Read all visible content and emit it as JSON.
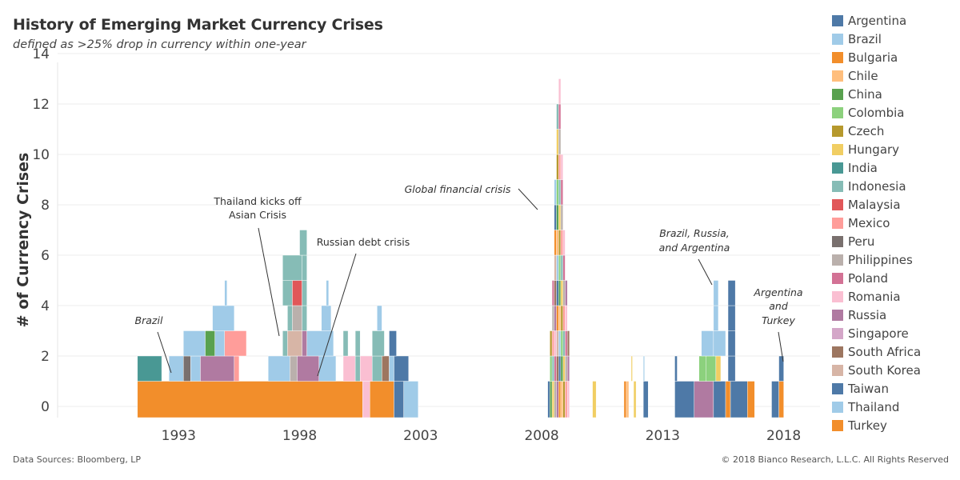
{
  "chart_data": {
    "type": "bar",
    "title": "History of Emerging Market Currency Crises",
    "subtitle": "defined as >25% drop in currency within one-year",
    "ylabel": "# of Currency Crises",
    "xlabel": "",
    "ylim": [
      0,
      14
    ],
    "yticks": [
      "0",
      "2",
      "4",
      "6",
      "8",
      "10",
      "12",
      "14"
    ],
    "xticks": [
      "1993",
      "1998",
      "2003",
      "2008",
      "2013",
      "2018"
    ],
    "grid": true,
    "legend_position": "right",
    "series": [
      {
        "name": "Argentina",
        "color": "#4e79a7"
      },
      {
        "name": "Brazil",
        "color": "#a0cbe8"
      },
      {
        "name": "Bulgaria",
        "color": "#f28e2b"
      },
      {
        "name": "Chile",
        "color": "#ffbe7d"
      },
      {
        "name": "China",
        "color": "#59a14f"
      },
      {
        "name": "Colombia",
        "color": "#8cd17d"
      },
      {
        "name": "Czech",
        "color": "#b6992d"
      },
      {
        "name": "Hungary",
        "color": "#f1ce63"
      },
      {
        "name": "India",
        "color": "#499894"
      },
      {
        "name": "Indonesia",
        "color": "#86bcb6"
      },
      {
        "name": "Malaysia",
        "color": "#e15759"
      },
      {
        "name": "Mexico",
        "color": "#ff9d9a"
      },
      {
        "name": "Peru",
        "color": "#79706e"
      },
      {
        "name": "Philippines",
        "color": "#bab0ac"
      },
      {
        "name": "Poland",
        "color": "#d37295"
      },
      {
        "name": "Romania",
        "color": "#fabfd2"
      },
      {
        "name": "Russia",
        "color": "#b07aa1"
      },
      {
        "name": "Singapore",
        "color": "#d4a6c8"
      },
      {
        "name": "South Africa",
        "color": "#9d7660"
      },
      {
        "name": "South Korea",
        "color": "#d7b5a6"
      },
      {
        "name": "Taiwan",
        "color": "#4e79a7"
      },
      {
        "name": "Thailand",
        "color": "#a0cbe8"
      },
      {
        "name": "Turkey",
        "color": "#f28e2b"
      }
    ],
    "segments": [
      {
        "country": "Bulgaria",
        "start": 1991.8,
        "end": 2001.1,
        "level": 0
      },
      {
        "country": "Bulgaria",
        "start": 2001.4,
        "end": 2002.4,
        "level": 0
      },
      {
        "country": "Romania",
        "start": 2001.1,
        "end": 2001.4,
        "level": 0
      },
      {
        "country": "Argentina",
        "start": 2002.4,
        "end": 2002.8,
        "level": 0
      },
      {
        "country": "Brazil",
        "start": 2002.8,
        "end": 2003.4,
        "level": 0
      },
      {
        "country": "India",
        "start": 1991.8,
        "end": 1992.8,
        "level": 1
      },
      {
        "country": "Thailand",
        "start": 1993.1,
        "end": 1993.7,
        "level": 1
      },
      {
        "country": "Peru",
        "start": 1993.7,
        "end": 1994.0,
        "level": 1
      },
      {
        "country": "Brazil",
        "start": 1994.0,
        "end": 1994.4,
        "level": 1
      },
      {
        "country": "Russia",
        "start": 1994.4,
        "end": 1995.8,
        "level": 1
      },
      {
        "country": "Mexico",
        "start": 1995.8,
        "end": 1996.0,
        "level": 1
      },
      {
        "country": "Thailand",
        "start": 1997.2,
        "end": 1998.1,
        "level": 1
      },
      {
        "country": "Philippines",
        "start": 1998.1,
        "end": 1998.4,
        "level": 1
      },
      {
        "country": "Russia",
        "start": 1998.4,
        "end": 1999.3,
        "level": 1
      },
      {
        "country": "Brazil",
        "start": 1999.3,
        "end": 2000.0,
        "level": 1
      },
      {
        "country": "Romania",
        "start": 2000.3,
        "end": 2000.8,
        "level": 1
      },
      {
        "country": "Indonesia",
        "start": 2000.8,
        "end": 2001.0,
        "level": 1
      },
      {
        "country": "Romania",
        "start": 2001.0,
        "end": 2001.5,
        "level": 1
      },
      {
        "country": "Indonesia",
        "start": 2001.5,
        "end": 2001.9,
        "level": 1
      },
      {
        "country": "South Africa",
        "start": 2001.9,
        "end": 2002.2,
        "level": 1
      },
      {
        "country": "Brazil",
        "start": 2002.2,
        "end": 2002.4,
        "level": 1
      },
      {
        "country": "Argentina",
        "start": 2002.4,
        "end": 2003.0,
        "level": 1
      },
      {
        "country": "Brazil",
        "start": 1993.7,
        "end": 1994.6,
        "level": 2
      },
      {
        "country": "China",
        "start": 1994.6,
        "end": 1995.0,
        "level": 2
      },
      {
        "country": "Brazil",
        "start": 1995.0,
        "end": 1995.4,
        "level": 2
      },
      {
        "country": "Mexico",
        "start": 1995.4,
        "end": 1996.3,
        "level": 2
      },
      {
        "country": "Indonesia",
        "start": 1997.8,
        "end": 1998.0,
        "level": 2
      },
      {
        "country": "South Korea",
        "start": 1998.0,
        "end": 1998.6,
        "level": 2
      },
      {
        "country": "Russia",
        "start": 1998.6,
        "end": 1998.8,
        "level": 2
      },
      {
        "country": "Brazil",
        "start": 1998.8,
        "end": 1999.9,
        "level": 2
      },
      {
        "country": "Indonesia",
        "start": 2000.3,
        "end": 2000.5,
        "level": 2
      },
      {
        "country": "Indonesia",
        "start": 2000.8,
        "end": 2001.0,
        "level": 2
      },
      {
        "country": "Indonesia",
        "start": 2001.5,
        "end": 2002.0,
        "level": 2
      },
      {
        "country": "Argentina",
        "start": 2002.2,
        "end": 2002.5,
        "level": 2
      },
      {
        "country": "Brazil",
        "start": 1994.9,
        "end": 1995.8,
        "level": 3
      },
      {
        "country": "Indonesia",
        "start": 1998.0,
        "end": 1998.2,
        "level": 3
      },
      {
        "country": "Philippines",
        "start": 1998.2,
        "end": 1998.6,
        "level": 3
      },
      {
        "country": "Indonesia",
        "start": 1998.6,
        "end": 1998.8,
        "level": 3
      },
      {
        "country": "Brazil",
        "start": 1999.4,
        "end": 1999.8,
        "level": 3
      },
      {
        "country": "Brazil",
        "start": 2001.7,
        "end": 2001.9,
        "level": 3
      },
      {
        "country": "Brazil",
        "start": 1995.4,
        "end": 1995.5,
        "level": 4
      },
      {
        "country": "Indonesia",
        "start": 1997.8,
        "end": 1998.2,
        "level": 4
      },
      {
        "country": "Malaysia",
        "start": 1998.2,
        "end": 1998.6,
        "level": 4
      },
      {
        "country": "Indonesia",
        "start": 1998.6,
        "end": 1998.8,
        "level": 4
      },
      {
        "country": "Brazil",
        "start": 1999.6,
        "end": 1999.7,
        "level": 4
      },
      {
        "country": "Indonesia",
        "start": 1997.8,
        "end": 1998.6,
        "level": 5
      },
      {
        "country": "Indonesia",
        "start": 1998.6,
        "end": 1998.8,
        "level": 5
      },
      {
        "country": "Indonesia",
        "start": 1998.5,
        "end": 1998.8,
        "level": 6
      }
    ],
    "gfc": {
      "start": 2008.75,
      "end": 2009.65,
      "heights": [
        1,
        3,
        5,
        9,
        12,
        13,
        10,
        7,
        5,
        3
      ]
    },
    "segments_2008_colors": [
      "Argentina",
      "Brazil",
      "Chile",
      "China",
      "Colombia",
      "Czech",
      "Hungary",
      "Indonesia",
      "Mexico",
      "Philippines",
      "Poland",
      "Romania",
      "Russia",
      "South Africa",
      "South Korea",
      "Turkey"
    ],
    "segments_later": [
      {
        "country": "Hungary",
        "start": 2010.6,
        "end": 2010.75,
        "level": 0
      },
      {
        "country": "Turkey",
        "start": 2011.9,
        "end": 2012.0,
        "level": 0
      },
      {
        "country": "Chile",
        "start": 2012.0,
        "end": 2012.1,
        "level": 0
      },
      {
        "country": "Hungary",
        "start": 2012.3,
        "end": 2012.4,
        "level": 0
      },
      {
        "country": "Argentina",
        "start": 2012.7,
        "end": 2012.9,
        "level": 0
      },
      {
        "country": "Hungary",
        "start": 2012.2,
        "end": 2012.25,
        "level": 1
      },
      {
        "country": "Brazil",
        "start": 2012.7,
        "end": 2012.75,
        "level": 1
      },
      {
        "country": "Argentina",
        "start": 2014.0,
        "end": 2014.8,
        "level": 0
      },
      {
        "country": "Russia",
        "start": 2014.8,
        "end": 2015.6,
        "level": 0
      },
      {
        "country": "Argentina",
        "start": 2015.6,
        "end": 2016.1,
        "level": 0
      },
      {
        "country": "Turkey",
        "start": 2016.1,
        "end": 2016.3,
        "level": 0
      },
      {
        "country": "Argentina",
        "start": 2016.3,
        "end": 2017.0,
        "level": 0
      },
      {
        "country": "Turkey",
        "start": 2017.0,
        "end": 2017.3,
        "level": 0
      },
      {
        "country": "Argentina",
        "start": 2018.0,
        "end": 2018.3,
        "level": 0
      },
      {
        "country": "Turkey",
        "start": 2018.3,
        "end": 2018.5,
        "level": 0
      },
      {
        "country": "Argentina",
        "start": 2014.0,
        "end": 2014.1,
        "level": 1
      },
      {
        "country": "Colombia",
        "start": 2015.0,
        "end": 2015.3,
        "level": 1
      },
      {
        "country": "Colombia",
        "start": 2015.3,
        "end": 2015.7,
        "level": 1
      },
      {
        "country": "Hungary",
        "start": 2015.7,
        "end": 2015.9,
        "level": 1
      },
      {
        "country": "Argentina",
        "start": 2016.2,
        "end": 2016.5,
        "level": 1
      },
      {
        "country": "Argentina",
        "start": 2018.3,
        "end": 2018.5,
        "level": 1
      },
      {
        "country": "Brazil",
        "start": 2015.1,
        "end": 2015.6,
        "level": 2
      },
      {
        "country": "Brazil",
        "start": 2015.6,
        "end": 2016.1,
        "level": 2
      },
      {
        "country": "Argentina",
        "start": 2016.2,
        "end": 2016.5,
        "level": 2
      },
      {
        "country": "Brazil",
        "start": 2015.6,
        "end": 2015.8,
        "level": 3
      },
      {
        "country": "Argentina",
        "start": 2016.2,
        "end": 2016.5,
        "level": 3
      },
      {
        "country": "Brazil",
        "start": 2015.6,
        "end": 2015.8,
        "level": 4
      },
      {
        "country": "Argentina",
        "start": 2016.2,
        "end": 2016.5,
        "level": 4
      }
    ],
    "annotations": [
      {
        "text": "Brazil",
        "italic": true,
        "x": 1993.3,
        "y": 2
      },
      {
        "text": "Thailand kicks off",
        "italic": false,
        "x": 1998.0,
        "y": 4
      },
      {
        "text": "Asian Crisis",
        "italic": false,
        "x": 1998.0,
        "y": 4
      },
      {
        "text": "Russian debt crisis",
        "italic": false,
        "x": 1999.2,
        "y": 1.5
      },
      {
        "text": "Global financial crisis",
        "italic": true,
        "x": 2008.5,
        "y": 8
      },
      {
        "text": "Brazil, Russia,",
        "italic": true,
        "x": 2015.9,
        "y": 5
      },
      {
        "text": "and Argentina",
        "italic": true,
        "x": 2015.9,
        "y": 5
      },
      {
        "text": "Argentina",
        "italic": true,
        "x": 2018.1,
        "y": 2
      },
      {
        "text": "and",
        "italic": true,
        "x": 2018.1,
        "y": 2
      },
      {
        "text": "Turkey",
        "italic": true,
        "x": 2018.1,
        "y": 2
      }
    ],
    "xlim": [
      1988.5,
      2020.0
    ]
  },
  "footer": {
    "source": "Data Sources: Bloomberg, LP",
    "copyright": "© 2018 Bianco Research, L.L.C. All Rights Reserved"
  }
}
